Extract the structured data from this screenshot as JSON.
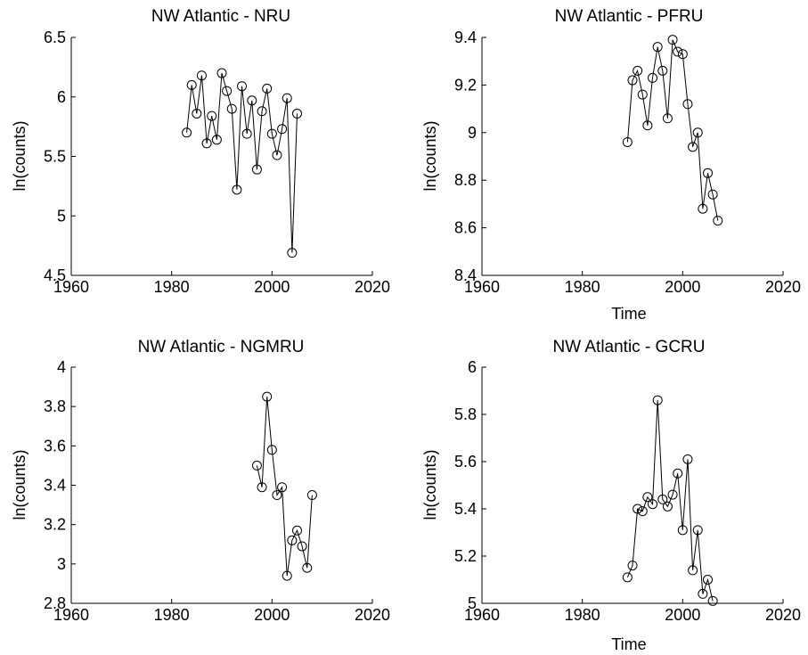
{
  "chart_data": [
    {
      "type": "line",
      "title": "NW Atlantic - NRU",
      "xlabel": "",
      "ylabel": "ln(counts)",
      "xlim": [
        1960,
        2020
      ],
      "ylim": [
        4.5,
        6.5
      ],
      "xticks": [
        1960,
        1980,
        2000,
        2020
      ],
      "yticks": [
        4.5,
        5,
        5.5,
        6,
        6.5
      ],
      "ytick_labels": [
        "4.5",
        "5",
        "5.5",
        "6",
        "6.5"
      ],
      "grid": false,
      "marker": "open-circle",
      "line_color": "#000000",
      "series": [
        {
          "x": [
            1983,
            1984,
            1985,
            1986,
            1987,
            1988,
            1989,
            1990,
            1991,
            1992,
            1993,
            1994,
            1995,
            1996,
            1997,
            1998,
            1999,
            2000,
            2001,
            2002,
            2003,
            2004,
            2005
          ],
          "y": [
            5.7,
            6.1,
            5.86,
            6.18,
            5.61,
            5.84,
            5.64,
            6.2,
            6.05,
            5.9,
            5.22,
            6.09,
            5.69,
            5.97,
            5.39,
            5.88,
            6.07,
            5.69,
            5.51,
            5.73,
            5.99,
            4.69,
            5.86
          ]
        }
      ]
    },
    {
      "type": "line",
      "title": "NW Atlantic - PFRU",
      "xlabel": "Time",
      "ylabel": "ln(counts)",
      "xlim": [
        1960,
        2020
      ],
      "ylim": [
        8.4,
        9.4
      ],
      "xticks": [
        1960,
        1980,
        2000,
        2020
      ],
      "yticks": [
        8.4,
        8.6,
        8.8,
        9,
        9.2,
        9.4
      ],
      "ytick_labels": [
        "8.4",
        "8.6",
        "8.8",
        "9",
        "9.2",
        "9.4"
      ],
      "grid": false,
      "marker": "open-circle",
      "line_color": "#000000",
      "series": [
        {
          "x": [
            1989,
            1990,
            1991,
            1992,
            1993,
            1994,
            1995,
            1996,
            1997,
            1998,
            1999,
            2000,
            2001,
            2002,
            2003,
            2004,
            2005,
            2006,
            2007
          ],
          "y": [
            8.96,
            9.22,
            9.26,
            9.16,
            9.03,
            9.23,
            9.36,
            9.26,
            9.06,
            9.39,
            9.34,
            9.33,
            9.12,
            8.94,
            9.0,
            8.68,
            8.83,
            8.74,
            8.63
          ]
        }
      ]
    },
    {
      "type": "line",
      "title": "NW Atlantic - NGMRU",
      "xlabel": "",
      "ylabel": "ln(counts)",
      "xlim": [
        1960,
        2020
      ],
      "ylim": [
        2.8,
        4
      ],
      "xticks": [
        1960,
        1980,
        2000,
        2020
      ],
      "yticks": [
        2.8,
        3,
        3.2,
        3.4,
        3.6,
        3.8,
        4
      ],
      "ytick_labels": [
        "2.8",
        "3",
        "3.2",
        "3.4",
        "3.6",
        "3.8",
        "4"
      ],
      "grid": false,
      "marker": "open-circle",
      "line_color": "#000000",
      "series": [
        {
          "x": [
            1997,
            1998,
            1999,
            2000,
            2001,
            2002,
            2003,
            2004,
            2005,
            2006,
            2007,
            2008
          ],
          "y": [
            3.5,
            3.39,
            3.85,
            3.58,
            3.35,
            3.39,
            2.94,
            3.12,
            3.17,
            3.09,
            2.98,
            3.35
          ]
        }
      ]
    },
    {
      "type": "line",
      "title": "NW Atlantic - GCRU",
      "xlabel": "Time",
      "ylabel": "ln(counts)",
      "xlim": [
        1960,
        2020
      ],
      "ylim": [
        5,
        6
      ],
      "xticks": [
        1960,
        1980,
        2000,
        2020
      ],
      "yticks": [
        5,
        5.2,
        5.4,
        5.6,
        5.8,
        6
      ],
      "ytick_labels": [
        "5",
        "5.2",
        "5.4",
        "5.6",
        "5.8",
        "6"
      ],
      "grid": false,
      "marker": "open-circle",
      "line_color": "#000000",
      "series": [
        {
          "x": [
            1989,
            1990,
            1991,
            1992,
            1993,
            1994,
            1995,
            1996,
            1997,
            1998,
            1999,
            2000,
            2001,
            2002,
            2003,
            2004,
            2005,
            2006
          ],
          "y": [
            5.11,
            5.16,
            5.4,
            5.39,
            5.45,
            5.42,
            5.86,
            5.44,
            5.41,
            5.46,
            5.55,
            5.31,
            5.61,
            5.14,
            5.31,
            5.04,
            5.1,
            5.01
          ]
        }
      ]
    }
  ]
}
